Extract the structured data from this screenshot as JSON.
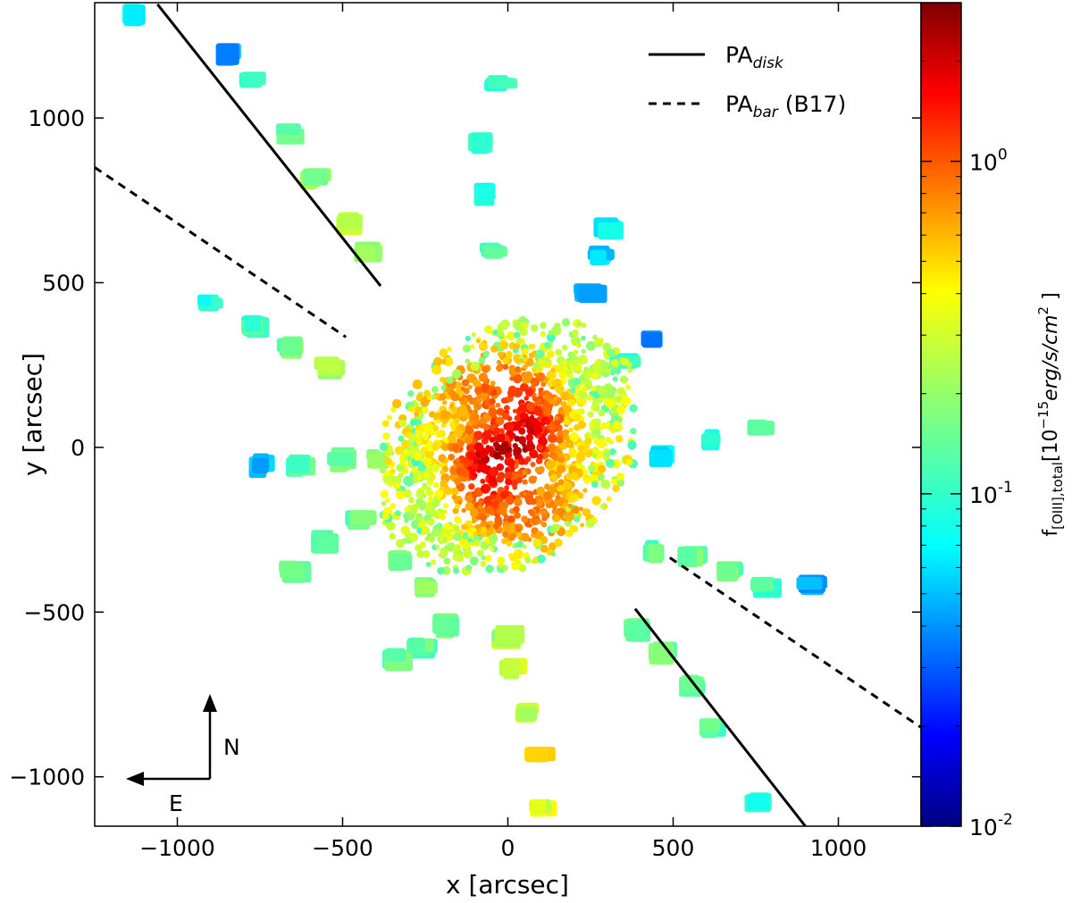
{
  "chart_data": {
    "type": "scatter",
    "xlabel": "x [arcsec]",
    "ylabel": "y [arcsec]",
    "xlim": [
      -1250,
      1250
    ],
    "ylim": [
      -1150,
      1350
    ],
    "x_ticks": [
      -1000,
      -500,
      0,
      500,
      1000
    ],
    "y_ticks": [
      -1000,
      -500,
      0,
      500,
      1000
    ],
    "x_tick_labels": [
      "−1000",
      "−500",
      "0",
      "500",
      "1000"
    ],
    "y_tick_labels": [
      "−1000",
      "−500",
      "0",
      "500",
      "1000"
    ],
    "grid": false,
    "legend_position": "top-right",
    "lines": [
      {
        "name": "PA",
        "name_sub": "disk",
        "suffix": "",
        "style": "solid",
        "color": "#000000",
        "segments": [
          [
            [
              -1060,
              1345
            ],
            [
              -385,
              490
            ]
          ],
          [
            [
              385,
              -490
            ],
            [
              900,
              -1150
            ]
          ]
        ]
      },
      {
        "name": "PA",
        "name_sub": "bar",
        "suffix": " (B17)",
        "style": "dashed",
        "color": "#000000",
        "segments": [
          [
            [
              -1250,
              850
            ],
            [
              -490,
              335
            ]
          ],
          [
            [
              490,
              -335
            ],
            [
              1250,
              -850
            ]
          ]
        ]
      }
    ],
    "colorbar": {
      "scale": "log",
      "range": [
        0.01,
        3.0
      ],
      "ticks": [
        0.01,
        0.1,
        1.0
      ],
      "tick_labels": [
        {
          "base": "10",
          "exp": "-2"
        },
        {
          "base": "10",
          "exp": "-1"
        },
        {
          "base": "10",
          "exp": "0"
        }
      ],
      "colormap": "jet",
      "label_main": "f",
      "label_sub": "[OIII],total",
      "label_units_pre": "[10",
      "label_units_exp": "−15",
      "label_units_post": "erg/s/cm",
      "label_units_exp2": "2",
      "label_units_close": " ]"
    },
    "compass": {
      "north": "N",
      "east": "E"
    },
    "description_points": "Galaxy with bright central spiral (values ~1-3) and radial spokes of pointings with values ~0.05-0.3",
    "pointings": [
      {
        "x": -1130,
        "y": 1310,
        "v": 0.09
      },
      {
        "x": -840,
        "y": 1190,
        "v": 0.05
      },
      {
        "x": -770,
        "y": 1110,
        "v": 0.11
      },
      {
        "x": -650,
        "y": 950,
        "v": 0.15
      },
      {
        "x": -580,
        "y": 810,
        "v": 0.18
      },
      {
        "x": -470,
        "y": 680,
        "v": 0.22
      },
      {
        "x": -420,
        "y": 590,
        "v": 0.2
      },
      {
        "x": -900,
        "y": 430,
        "v": 0.1
      },
      {
        "x": -760,
        "y": 360,
        "v": 0.12
      },
      {
        "x": -650,
        "y": 300,
        "v": 0.16
      },
      {
        "x": -540,
        "y": 240,
        "v": 0.2
      },
      {
        "x": -740,
        "y": -60,
        "v": 0.06
      },
      {
        "x": -620,
        "y": -60,
        "v": 0.13
      },
      {
        "x": -500,
        "y": -40,
        "v": 0.16
      },
      {
        "x": -390,
        "y": -40,
        "v": 0.18
      },
      {
        "x": -440,
        "y": -230,
        "v": 0.15
      },
      {
        "x": -550,
        "y": -290,
        "v": 0.14
      },
      {
        "x": -640,
        "y": -380,
        "v": 0.14
      },
      {
        "x": -320,
        "y": -350,
        "v": 0.16
      },
      {
        "x": -240,
        "y": -430,
        "v": 0.18
      },
      {
        "x": -180,
        "y": -540,
        "v": 0.16
      },
      {
        "x": -260,
        "y": -610,
        "v": 0.15
      },
      {
        "x": -330,
        "y": -650,
        "v": 0.14
      },
      {
        "x": -20,
        "y": 1100,
        "v": 0.12
      },
      {
        "x": -80,
        "y": 920,
        "v": 0.11
      },
      {
        "x": -60,
        "y": 770,
        "v": 0.09
      },
      {
        "x": -40,
        "y": 590,
        "v": 0.14
      },
      {
        "x": 0,
        "y": -580,
        "v": 0.22
      },
      {
        "x": 20,
        "y": -680,
        "v": 0.24
      },
      {
        "x": 60,
        "y": -810,
        "v": 0.25
      },
      {
        "x": 100,
        "y": -940,
        "v": 0.45
      },
      {
        "x": 110,
        "y": -1100,
        "v": 0.3
      },
      {
        "x": 310,
        "y": 660,
        "v": 0.08
      },
      {
        "x": 290,
        "y": 580,
        "v": 0.07
      },
      {
        "x": 250,
        "y": 470,
        "v": 0.05
      },
      {
        "x": 440,
        "y": 320,
        "v": 0.045
      },
      {
        "x": 360,
        "y": 260,
        "v": 0.11
      },
      {
        "x": 470,
        "y": -30,
        "v": 0.08
      },
      {
        "x": 620,
        "y": 20,
        "v": 0.1
      },
      {
        "x": 770,
        "y": 60,
        "v": 0.12
      },
      {
        "x": 450,
        "y": -320,
        "v": 0.14
      },
      {
        "x": 560,
        "y": -340,
        "v": 0.15
      },
      {
        "x": 680,
        "y": -380,
        "v": 0.15
      },
      {
        "x": 780,
        "y": -430,
        "v": 0.12
      },
      {
        "x": 920,
        "y": -420,
        "v": 0.05
      },
      {
        "x": 400,
        "y": -560,
        "v": 0.16
      },
      {
        "x": 470,
        "y": -630,
        "v": 0.16
      },
      {
        "x": 560,
        "y": -730,
        "v": 0.16
      },
      {
        "x": 620,
        "y": -860,
        "v": 0.14
      },
      {
        "x": 760,
        "y": -1090,
        "v": 0.1
      }
    ]
  }
}
